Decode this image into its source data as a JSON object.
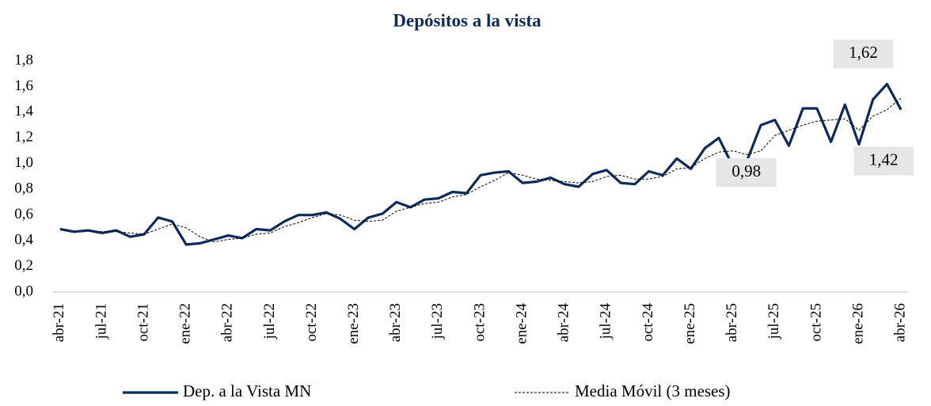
{
  "chart_data": {
    "type": "line",
    "title": "Depósitos a la vista",
    "categories": [
      "abr-21",
      null,
      null,
      "jul-21",
      null,
      null,
      "oct-21",
      null,
      null,
      "ene-22",
      null,
      null,
      "abr-22",
      null,
      null,
      "jul-22",
      null,
      null,
      "oct-22",
      null,
      null,
      "ene-23",
      null,
      null,
      "abr-23",
      null,
      null,
      "jul-23",
      null,
      null,
      "oct-23",
      null,
      null,
      "ene-24",
      null,
      null,
      "abr-24",
      null,
      null,
      "jul-24",
      null,
      null,
      "oct-24",
      null,
      null,
      "ene-25",
      null,
      null,
      "abr-25",
      null,
      null,
      "jul-25",
      null,
      null,
      "oct-25",
      null,
      null,
      "ene-26",
      null,
      null,
      "abr-26"
    ],
    "series": [
      {
        "name": "Dep. a la Vista MN",
        "color": "#0d2a5c",
        "style": "solid",
        "values": [
          0.49,
          0.47,
          0.48,
          0.46,
          0.48,
          0.43,
          0.45,
          0.58,
          0.55,
          0.37,
          0.38,
          0.41,
          0.44,
          0.42,
          0.49,
          0.48,
          0.55,
          0.6,
          0.6,
          0.62,
          0.57,
          0.49,
          0.58,
          0.61,
          0.7,
          0.66,
          0.72,
          0.73,
          0.78,
          0.77,
          0.91,
          0.93,
          0.94,
          0.85,
          0.86,
          0.89,
          0.84,
          0.82,
          0.92,
          0.95,
          0.85,
          0.84,
          0.94,
          0.91,
          1.04,
          0.96,
          1.12,
          1.2,
          0.98,
          1.02,
          1.3,
          1.34,
          1.14,
          1.43,
          1.43,
          1.17,
          1.46,
          1.15,
          1.5,
          1.62,
          1.42
        ],
        "value_labels": [
          null,
          null,
          null,
          null,
          null,
          null,
          null,
          null,
          null,
          null,
          null,
          null,
          null,
          null,
          null,
          null,
          null,
          null,
          null,
          null,
          null,
          null,
          null,
          null,
          null,
          null,
          null,
          null,
          null,
          null,
          null,
          null,
          null,
          null,
          null,
          null,
          null,
          null,
          null,
          null,
          null,
          null,
          null,
          null,
          null,
          null,
          null,
          null,
          "0,98",
          null,
          null,
          null,
          null,
          null,
          null,
          null,
          null,
          null,
          null,
          "1,62",
          "1,42"
        ]
      },
      {
        "name": "Media Móvil (3 meses)",
        "color": "#000000",
        "style": "dashed",
        "values": [
          null,
          null,
          0.48,
          0.47,
          0.47,
          0.46,
          0.45,
          0.49,
          0.53,
          0.5,
          0.43,
          0.39,
          0.41,
          0.42,
          0.45,
          0.46,
          0.51,
          0.54,
          0.58,
          0.61,
          0.6,
          0.56,
          0.55,
          0.56,
          0.63,
          0.66,
          0.69,
          0.7,
          0.74,
          0.76,
          0.82,
          0.87,
          0.93,
          0.91,
          0.88,
          0.87,
          0.86,
          0.85,
          0.86,
          0.9,
          0.91,
          0.88,
          0.88,
          0.9,
          0.96,
          0.97,
          1.04,
          1.09,
          1.1,
          1.07,
          1.1,
          1.22,
          1.26,
          1.3,
          1.33,
          1.34,
          1.35,
          1.26,
          1.37,
          1.42,
          1.51
        ]
      }
    ],
    "ylim": [
      0,
      1.8
    ],
    "yticks": [
      {
        "value": 0,
        "label": "0,0"
      },
      {
        "value": 0.2,
        "label": "0,2"
      },
      {
        "value": 0.4,
        "label": "0,4"
      },
      {
        "value": 0.6,
        "label": "0,6"
      },
      {
        "value": 0.8,
        "label": "0,8"
      },
      {
        "value": 1.0,
        "label": "1,0"
      },
      {
        "value": 1.2,
        "label": "1,2"
      },
      {
        "value": 1.4,
        "label": "1,4"
      },
      {
        "value": 1.6,
        "label": "1,6"
      },
      {
        "value": 1.8,
        "label": "1,8"
      }
    ],
    "grid": false,
    "legend": "bottom"
  }
}
